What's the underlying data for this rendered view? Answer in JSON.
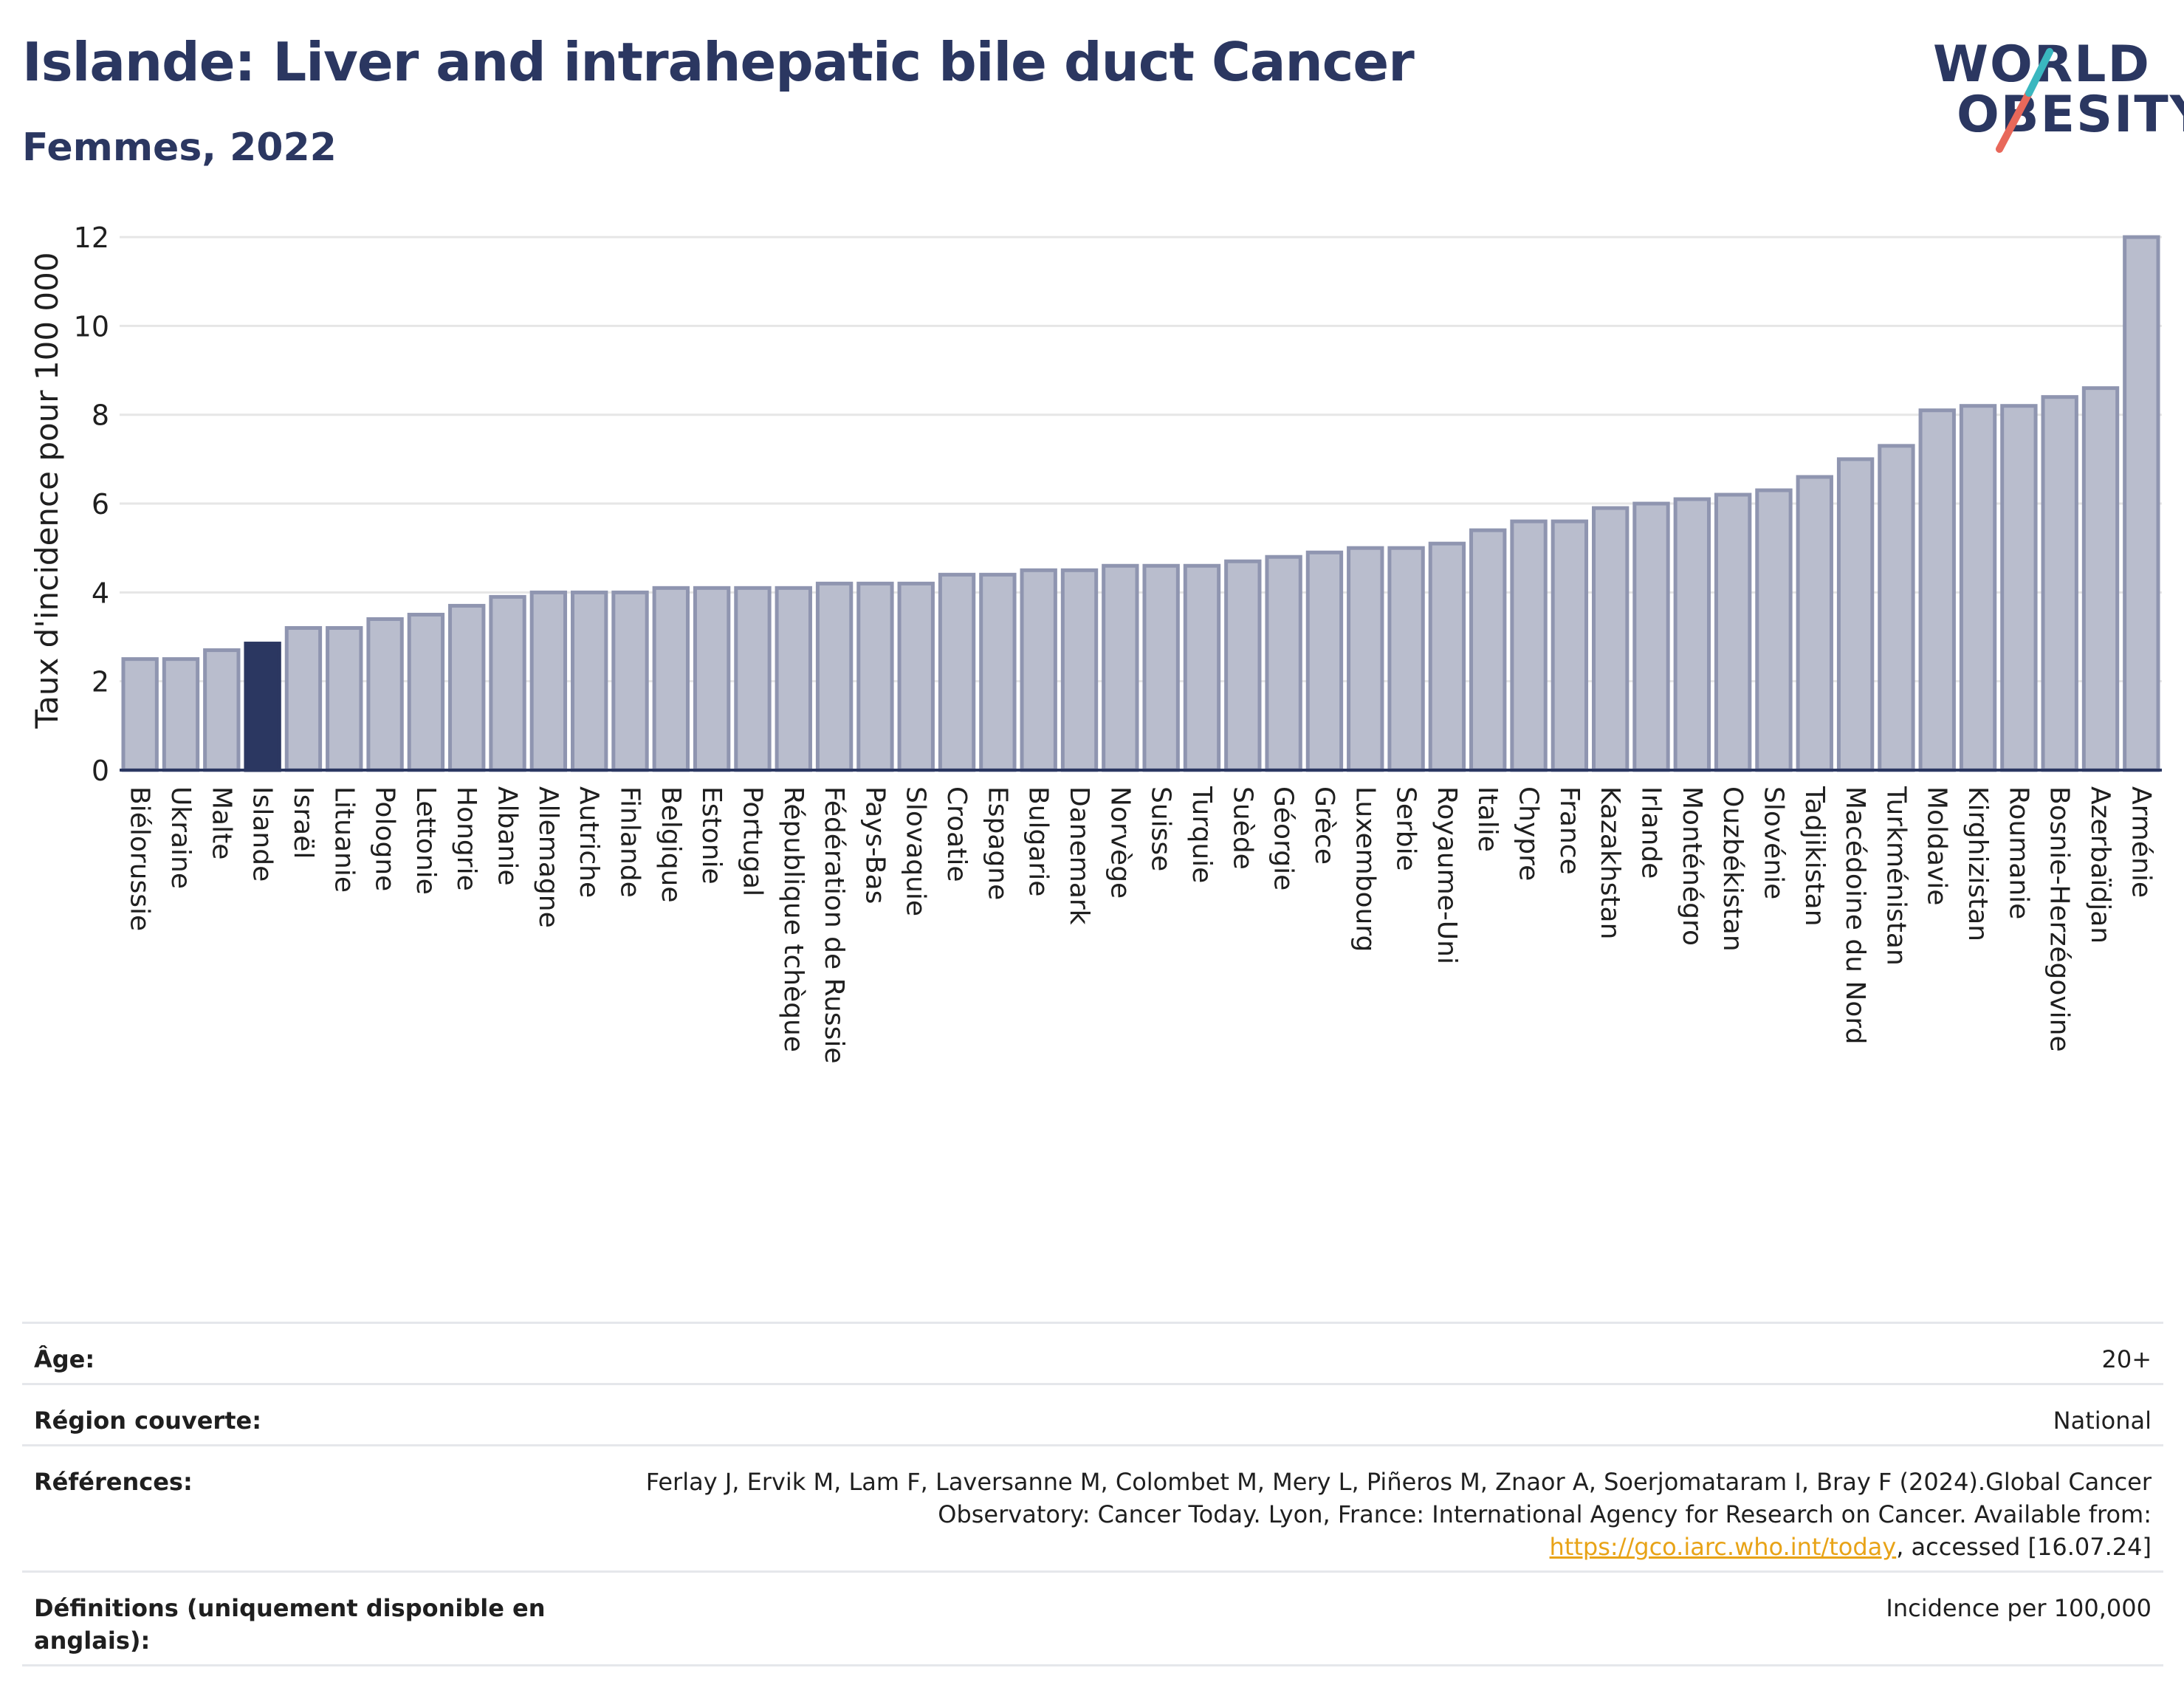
{
  "header": {
    "title": "Islande: Liver and intrahepatic bile duct Cancer",
    "subtitle": "Femmes, 2022"
  },
  "logo": {
    "line1": "WORLD",
    "line2": "OBESITY",
    "accent_teal": "#3ab7bf",
    "accent_coral": "#e8685a"
  },
  "colors": {
    "bar": "#b9bdcd",
    "bar_border": "#8f95b0",
    "highlight": "#2b3761",
    "grid": "#e6e6e6",
    "axis": "#2b3761"
  },
  "chart_data": {
    "type": "bar",
    "ylabel": "Taux d'incidence pour 100 000",
    "ylim": [
      0,
      12.6
    ],
    "yticks": [
      0,
      2,
      4,
      6,
      8,
      10,
      12
    ],
    "highlight": "Islande",
    "categories": [
      "Biélorussie",
      "Ukraine",
      "Malte",
      "Islande",
      "Israël",
      "Lituanie",
      "Pologne",
      "Lettonie",
      "Hongrie",
      "Albanie",
      "Allemagne",
      "Autriche",
      "Finlande",
      "Belgique",
      "Estonie",
      "Portugal",
      "République tchèque",
      "Fédération de Russie",
      "Pays-Bas",
      "Slovaquie",
      "Croatie",
      "Espagne",
      "Bulgarie",
      "Danemark",
      "Norvège",
      "Suisse",
      "Turquie",
      "Suède",
      "Géorgie",
      "Grèce",
      "Luxembourg",
      "Serbie",
      "Royaume-Uni",
      "Italie",
      "Chypre",
      "France",
      "Kazakhstan",
      "Irlande",
      "Monténégro",
      "Ouzbékistan",
      "Slovénie",
      "Tadjikistan",
      "Macédoine du Nord",
      "Turkménistan",
      "Moldavie",
      "Kirghizistan",
      "Roumanie",
      "Bosnie-Herzégovine",
      "Azerbaïdjan",
      "Arménie"
    ],
    "values": [
      2.5,
      2.5,
      2.7,
      2.85,
      3.2,
      3.2,
      3.4,
      3.5,
      3.7,
      3.9,
      4.0,
      4.0,
      4.0,
      4.1,
      4.1,
      4.1,
      4.1,
      4.2,
      4.2,
      4.2,
      4.4,
      4.4,
      4.5,
      4.5,
      4.6,
      4.6,
      4.6,
      4.7,
      4.8,
      4.9,
      5.0,
      5.0,
      5.1,
      5.4,
      5.6,
      5.6,
      5.9,
      6.0,
      6.1,
      6.2,
      6.3,
      6.6,
      7.0,
      7.3,
      8.1,
      8.2,
      8.2,
      8.4,
      8.6,
      12.0
    ]
  },
  "info_table": {
    "rows": [
      {
        "label": "Âge:",
        "value": "20+"
      },
      {
        "label": "Région couverte:",
        "value": "National"
      },
      {
        "label": "Références:",
        "value_pre": "Ferlay J, Ervik M, Lam F, Laversanne M, Colombet M, Mery L, Piñeros M, Znaor A, Soerjomataram I, Bray F (2024).Global Cancer Observatory: Cancer Today. Lyon, France: International Agency for Research on Cancer. Available from: ",
        "link": "https://gco.iarc.who.int/today",
        "value_post": ", accessed [16.07.24]"
      },
      {
        "label": "Définitions (uniquement disponible en anglais):",
        "value": "Incidence per 100,000"
      }
    ]
  }
}
